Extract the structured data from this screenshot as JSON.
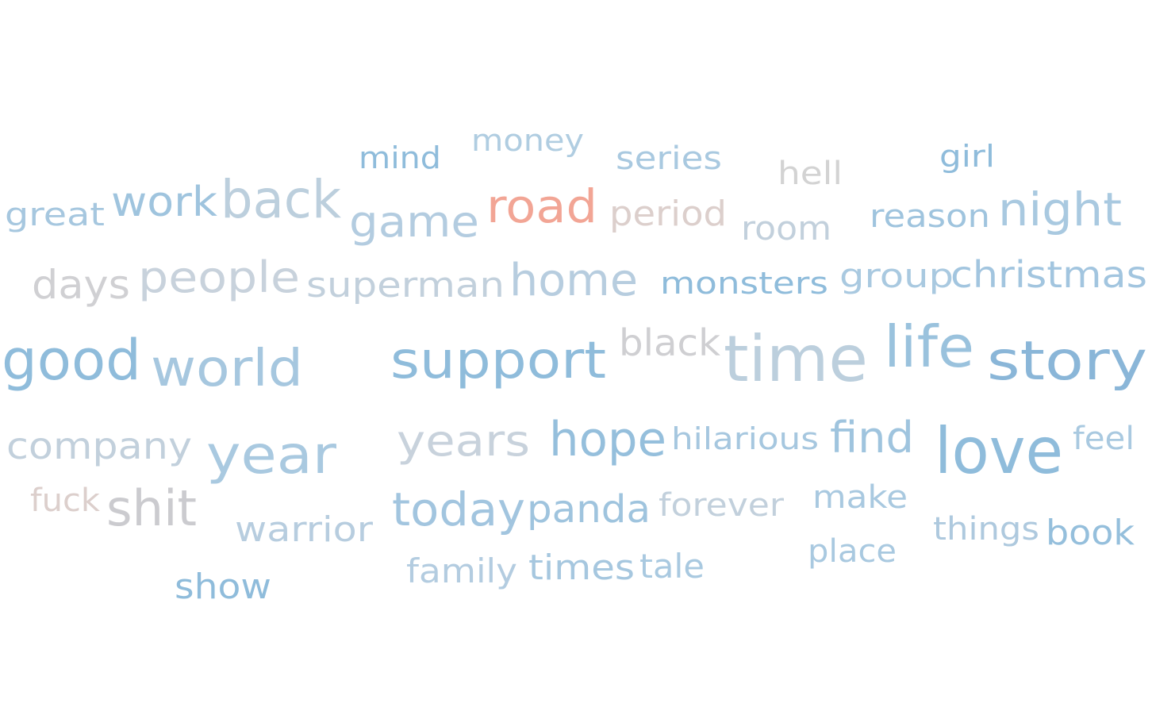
{
  "chart_data": {
    "type": "wordcloud",
    "title": "",
    "words": [
      {
        "text": "mind",
        "weight": 38,
        "color": "#8fbcdb"
      },
      {
        "text": "money",
        "weight": 38,
        "color": "#b0cde1"
      },
      {
        "text": "series",
        "weight": 40,
        "color": "#a9c9e0"
      },
      {
        "text": "hell",
        "weight": 40,
        "color": "#d3d3d3"
      },
      {
        "text": "girl",
        "weight": 38,
        "color": "#8fbcdb"
      },
      {
        "text": "great",
        "weight": 40,
        "color": "#a6c7df"
      },
      {
        "text": "work",
        "weight": 52,
        "color": "#9fc4de"
      },
      {
        "text": "back",
        "weight": 66,
        "color": "#bccfdd"
      },
      {
        "text": "game",
        "weight": 54,
        "color": "#b3cce0"
      },
      {
        "text": "road",
        "weight": 58,
        "color": "#f2a595"
      },
      {
        "text": "period",
        "weight": 44,
        "color": "#dccfcc"
      },
      {
        "text": "room",
        "weight": 42,
        "color": "#c2d0dc"
      },
      {
        "text": "reason",
        "weight": 40,
        "color": "#9fc4de"
      },
      {
        "text": "night",
        "weight": 58,
        "color": "#a9c9e0"
      },
      {
        "text": "days",
        "weight": 50,
        "color": "#d0d0d3"
      },
      {
        "text": "people",
        "weight": 54,
        "color": "#c8d2dc"
      },
      {
        "text": "superman",
        "weight": 44,
        "color": "#c2d0dc"
      },
      {
        "text": "home",
        "weight": 56,
        "color": "#b7cddf"
      },
      {
        "text": "monsters",
        "weight": 38,
        "color": "#8fbcdb"
      },
      {
        "text": "group",
        "weight": 42,
        "color": "#a9c9e0"
      },
      {
        "text": "christmas",
        "weight": 46,
        "color": "#a2c5df"
      },
      {
        "text": "good",
        "weight": 70,
        "color": "#8fbcdb"
      },
      {
        "text": "world",
        "weight": 64,
        "color": "#a6c7df"
      },
      {
        "text": "support",
        "weight": 64,
        "color": "#8fbcdb"
      },
      {
        "text": "black",
        "weight": 46,
        "color": "#cfcfd2"
      },
      {
        "text": "time",
        "weight": 80,
        "color": "#bccfdd"
      },
      {
        "text": "life",
        "weight": 72,
        "color": "#9ac2dd"
      },
      {
        "text": "story",
        "weight": 68,
        "color": "#8ab6d8"
      },
      {
        "text": "company",
        "weight": 46,
        "color": "#c2d0dc"
      },
      {
        "text": "year",
        "weight": 66,
        "color": "#a9c9e0"
      },
      {
        "text": "years",
        "weight": 54,
        "color": "#c8d2dc"
      },
      {
        "text": "hope",
        "weight": 60,
        "color": "#95bfdc"
      },
      {
        "text": "hilarious",
        "weight": 38,
        "color": "#a6c7df"
      },
      {
        "text": "find",
        "weight": 54,
        "color": "#9fc4de"
      },
      {
        "text": "love",
        "weight": 80,
        "color": "#8fbcdb"
      },
      {
        "text": "feel",
        "weight": 40,
        "color": "#a9c9e0"
      },
      {
        "text": "fuck",
        "weight": 40,
        "color": "#dccfcc"
      },
      {
        "text": "shit",
        "weight": 62,
        "color": "#cbcbcf"
      },
      {
        "text": "warrior",
        "weight": 44,
        "color": "#b7cddf"
      },
      {
        "text": "today",
        "weight": 58,
        "color": "#a2c5df"
      },
      {
        "text": "panda",
        "weight": 48,
        "color": "#9fc4de"
      },
      {
        "text": "forever",
        "weight": 40,
        "color": "#c2d0dc"
      },
      {
        "text": "make",
        "weight": 40,
        "color": "#a9c9e0"
      },
      {
        "text": "things",
        "weight": 40,
        "color": "#aec9de"
      },
      {
        "text": "book",
        "weight": 44,
        "color": "#95bfdc"
      },
      {
        "text": "place",
        "weight": 40,
        "color": "#a9c9e0"
      },
      {
        "text": "family",
        "weight": 42,
        "color": "#b3cce0"
      },
      {
        "text": "times",
        "weight": 44,
        "color": "#a6c7df"
      },
      {
        "text": "tale",
        "weight": 42,
        "color": "#a9c9e0"
      },
      {
        "text": "show",
        "weight": 44,
        "color": "#8fbcdb"
      }
    ]
  }
}
